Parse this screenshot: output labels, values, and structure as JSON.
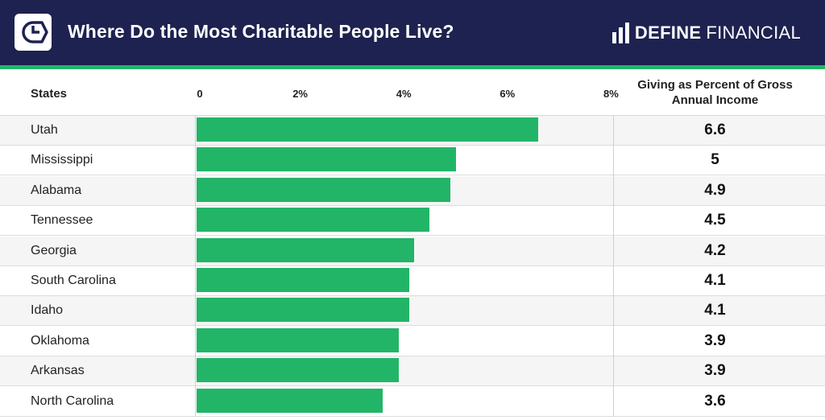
{
  "header": {
    "title": "Where Do the Most Charitable People Live?",
    "brand_bold": "DEFINE",
    "brand_light": "FINANCIAL",
    "background": "#1d2250",
    "accent": "#22b567"
  },
  "chart_data": {
    "type": "bar",
    "orientation": "horizontal",
    "title": "Where Do the Most Charitable People Live?",
    "category_header": "States",
    "value_header": "Giving as Percent of Gross Annual Income",
    "xlim": [
      0,
      8
    ],
    "ticks": [
      {
        "value": 0,
        "label": "0"
      },
      {
        "value": 2,
        "label": "2%"
      },
      {
        "value": 4,
        "label": "4%"
      },
      {
        "value": 6,
        "label": "6%"
      },
      {
        "value": 8,
        "label": "8%"
      }
    ],
    "bar_color": "#22b567",
    "categories": [
      "Utah",
      "Mississippi",
      "Alabama",
      "Tennessee",
      "Georgia",
      "South Carolina",
      "Idaho",
      "Oklahoma",
      "Arkansas",
      "North Carolina"
    ],
    "values": [
      6.6,
      5,
      4.9,
      4.5,
      4.2,
      4.1,
      4.1,
      3.9,
      3.9,
      3.6
    ],
    "value_labels": [
      "6.6",
      "5",
      "4.9",
      "4.5",
      "4.2",
      "4.1",
      "4.1",
      "3.9",
      "3.9",
      "3.6"
    ]
  }
}
